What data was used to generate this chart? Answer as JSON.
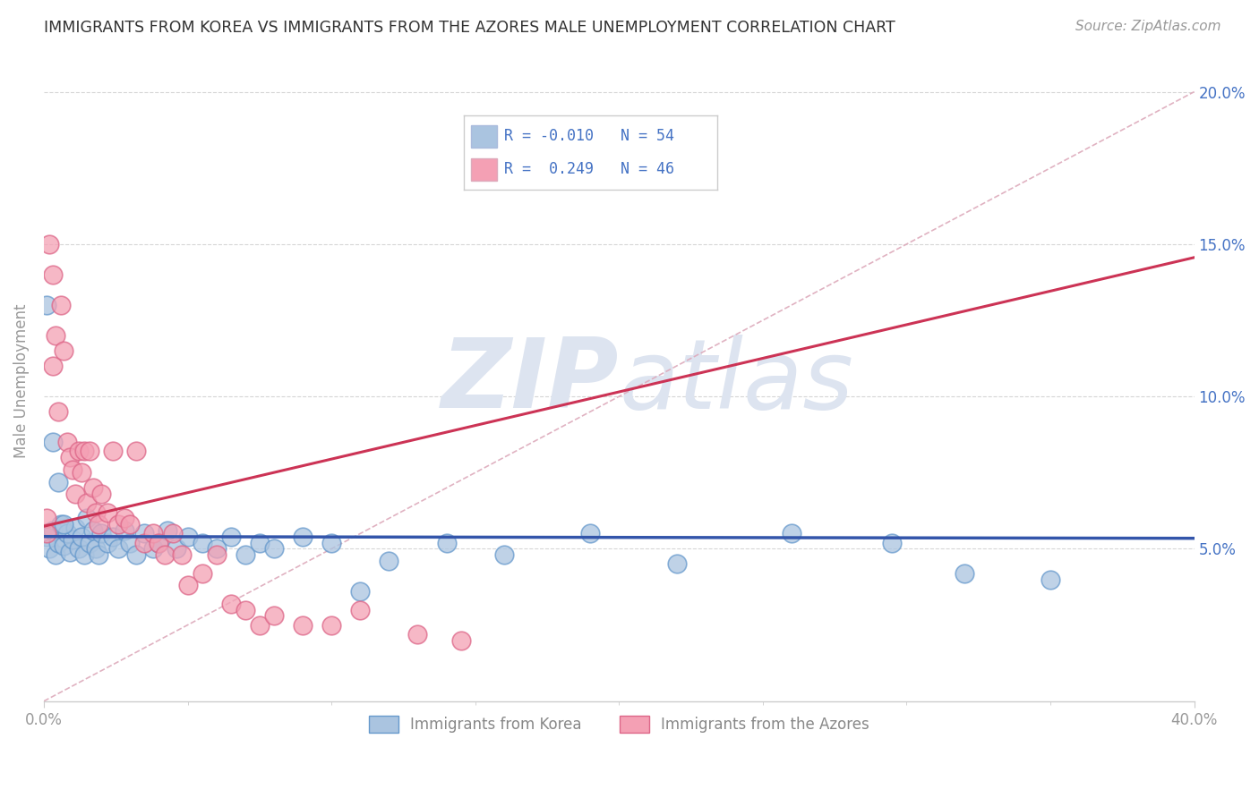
{
  "title": "IMMIGRANTS FROM KOREA VS IMMIGRANTS FROM THE AZORES MALE UNEMPLOYMENT CORRELATION CHART",
  "source": "Source: ZipAtlas.com",
  "ylabel": "Male Unemployment",
  "xlim": [
    0.0,
    0.4
  ],
  "ylim": [
    0.0,
    0.21
  ],
  "ytick_positions": [
    0.05,
    0.1,
    0.15,
    0.2
  ],
  "ytick_labels": [
    "5.0%",
    "10.0%",
    "15.0%",
    "20.0%"
  ],
  "korea_R": "-0.010",
  "korea_N": "54",
  "azores_R": "0.249",
  "azores_N": "46",
  "korea_color": "#aac4e0",
  "korea_edge_color": "#6699cc",
  "azores_color": "#f4a0b4",
  "azores_edge_color": "#dd6688",
  "korea_line_color": "#3355aa",
  "azores_line_color": "#cc3355",
  "diag_line_color": "#ccaabb",
  "background_color": "#ffffff",
  "watermark_color": "#dde4f0",
  "legend_text_color": "#4472c4",
  "korea_scatter_x": [
    0.001,
    0.002,
    0.003,
    0.004,
    0.005,
    0.006,
    0.007,
    0.008,
    0.009,
    0.01,
    0.011,
    0.012,
    0.013,
    0.014,
    0.015,
    0.016,
    0.017,
    0.018,
    0.019,
    0.02,
    0.022,
    0.024,
    0.026,
    0.028,
    0.03,
    0.032,
    0.035,
    0.038,
    0.04,
    0.043,
    0.046,
    0.05,
    0.055,
    0.06,
    0.065,
    0.07,
    0.075,
    0.08,
    0.09,
    0.1,
    0.11,
    0.12,
    0.14,
    0.16,
    0.19,
    0.22,
    0.26,
    0.295,
    0.32,
    0.35,
    0.001,
    0.003,
    0.005,
    0.007
  ],
  "korea_scatter_y": [
    0.054,
    0.05,
    0.056,
    0.048,
    0.052,
    0.058,
    0.051,
    0.055,
    0.049,
    0.053,
    0.057,
    0.05,
    0.054,
    0.048,
    0.06,
    0.052,
    0.056,
    0.05,
    0.048,
    0.055,
    0.052,
    0.054,
    0.05,
    0.056,
    0.052,
    0.048,
    0.055,
    0.05,
    0.052,
    0.056,
    0.05,
    0.054,
    0.052,
    0.05,
    0.054,
    0.048,
    0.052,
    0.05,
    0.054,
    0.052,
    0.036,
    0.046,
    0.052,
    0.048,
    0.055,
    0.045,
    0.055,
    0.052,
    0.042,
    0.04,
    0.13,
    0.085,
    0.072,
    0.058
  ],
  "azores_scatter_x": [
    0.001,
    0.001,
    0.002,
    0.003,
    0.003,
    0.004,
    0.005,
    0.006,
    0.007,
    0.008,
    0.009,
    0.01,
    0.011,
    0.012,
    0.013,
    0.014,
    0.015,
    0.016,
    0.017,
    0.018,
    0.019,
    0.02,
    0.022,
    0.024,
    0.026,
    0.028,
    0.03,
    0.032,
    0.035,
    0.038,
    0.04,
    0.042,
    0.045,
    0.048,
    0.05,
    0.055,
    0.06,
    0.065,
    0.07,
    0.075,
    0.08,
    0.09,
    0.1,
    0.11,
    0.13,
    0.145
  ],
  "azores_scatter_y": [
    0.06,
    0.055,
    0.15,
    0.14,
    0.11,
    0.12,
    0.095,
    0.13,
    0.115,
    0.085,
    0.08,
    0.076,
    0.068,
    0.082,
    0.075,
    0.082,
    0.065,
    0.082,
    0.07,
    0.062,
    0.058,
    0.068,
    0.062,
    0.082,
    0.058,
    0.06,
    0.058,
    0.082,
    0.052,
    0.055,
    0.052,
    0.048,
    0.055,
    0.048,
    0.038,
    0.042,
    0.048,
    0.032,
    0.03,
    0.025,
    0.028,
    0.025,
    0.025,
    0.03,
    0.022,
    0.02
  ]
}
